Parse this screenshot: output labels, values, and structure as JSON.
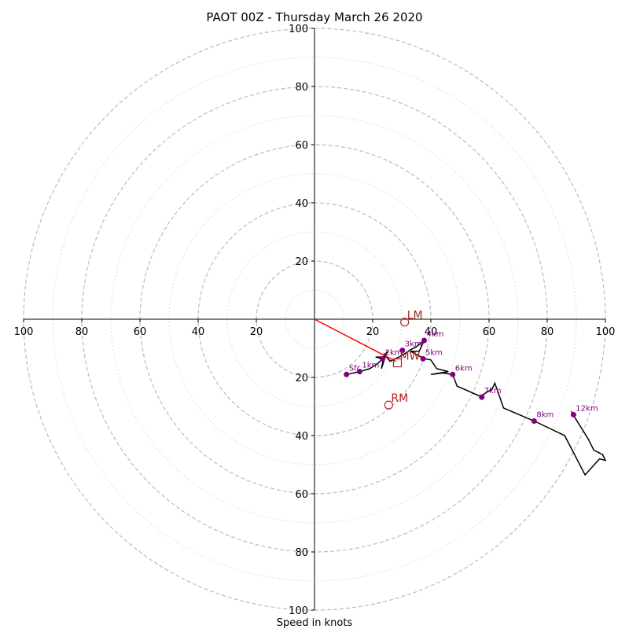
{
  "chart_data": {
    "type": "hodograph",
    "title": "PAOT 00Z - Thursday March 26 2020",
    "xlabel": "Speed in knots",
    "range": [
      -100,
      100
    ],
    "ring_major": [
      20,
      40,
      60,
      80,
      100
    ],
    "ring_minor": [
      10,
      30,
      50,
      70,
      90
    ],
    "x_tick_labels": [
      "100",
      "80",
      "60",
      "40",
      "20",
      "20",
      "40",
      "60",
      "80",
      "100"
    ],
    "y_tick_labels": [
      "100",
      "80",
      "60",
      "40",
      "20",
      "20",
      "40",
      "60",
      "80",
      "100"
    ],
    "colors": {
      "grid": "#bbbbbb",
      "minor_grid": "#d3d3d3",
      "hodograph": "#000000",
      "height_marker": "#800080",
      "storm_motion": "#b22222",
      "shear_vector": "#ff0000"
    },
    "hodograph_trace": [
      [
        11,
        -19
      ],
      [
        15.5,
        -18
      ],
      [
        19,
        -17
      ],
      [
        22,
        -15
      ],
      [
        23.4,
        -13.6
      ],
      [
        21,
        -13
      ],
      [
        24,
        -13
      ],
      [
        25,
        -11
      ],
      [
        23,
        -17
      ],
      [
        24,
        -12
      ],
      [
        26,
        -14.5
      ],
      [
        30,
        -12.5
      ],
      [
        33,
        -10.5
      ],
      [
        35,
        -9.5
      ],
      [
        37.7,
        -7.3
      ],
      [
        36,
        -11
      ],
      [
        33,
        -11
      ],
      [
        37.5,
        -13.5
      ],
      [
        40,
        -14
      ],
      [
        42,
        -17
      ],
      [
        46,
        -18
      ],
      [
        40,
        -19
      ],
      [
        44,
        -18.5
      ],
      [
        47.5,
        -19
      ],
      [
        49,
        -23
      ],
      [
        57,
        -26.5
      ],
      [
        61,
        -24
      ],
      [
        62,
        -22
      ],
      [
        65,
        -30.5
      ],
      [
        75.5,
        -35
      ],
      [
        86,
        -40
      ],
      [
        93,
        -53.5
      ],
      [
        98,
        -48
      ],
      [
        100,
        -48.5
      ],
      [
        99,
        -46.5
      ],
      [
        96,
        -45
      ],
      [
        94,
        -41
      ],
      [
        89,
        -33
      ],
      [
        88.5,
        -32
      ],
      [
        90,
        -33
      ]
    ],
    "height_markers": [
      {
        "label": "Sfc",
        "u": 11,
        "v": -19
      },
      {
        "label": "1km",
        "u": 15.5,
        "v": -18
      },
      {
        "label": "2km",
        "u": 23.4,
        "v": -13.6
      },
      {
        "label": "3km",
        "u": 30.2,
        "v": -10.7
      },
      {
        "label": "4km",
        "u": 37.7,
        "v": -7.3
      },
      {
        "label": "5km",
        "u": 37.3,
        "v": -13.6
      },
      {
        "label": "6km",
        "u": 47.5,
        "v": -19
      },
      {
        "label": "7km",
        "u": 57.5,
        "v": -26.8
      },
      {
        "label": "8km",
        "u": 75.5,
        "v": -35
      },
      {
        "label": "12km",
        "u": 89,
        "v": -32.8
      }
    ],
    "storm_motions": [
      {
        "label": "LM",
        "u": 31,
        "v": -1,
        "shape": "circle"
      },
      {
        "label": "MW",
        "u": 28.5,
        "v": -15,
        "shape": "square"
      },
      {
        "label": "RM",
        "u": 25.5,
        "v": -29.5,
        "shape": "circle"
      }
    ],
    "shear_vector": {
      "from": [
        0,
        0
      ],
      "to": [
        28,
        -14.5
      ]
    }
  }
}
